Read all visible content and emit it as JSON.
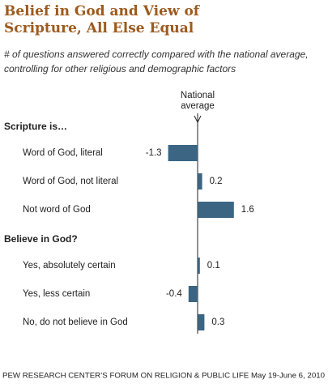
{
  "chart_data": {
    "type": "bar",
    "title": "Belief in God and View of Scripture, All Else Equal",
    "subtitle": "# of questions answered correctly compared with the national average, controlling for other religious and demographic factors",
    "reference_label": "National average",
    "color": "#3b6583",
    "groups": [
      {
        "name": "Scripture is…",
        "categories": [
          "Word of God, literal",
          "Word of God, not literal",
          "Not word of God"
        ],
        "values": [
          -1.3,
          0.2,
          1.6
        ]
      },
      {
        "name": "Believe in God?",
        "categories": [
          "Yes, absolutely certain",
          "Yes, less certain",
          "No, do not believe in God"
        ],
        "values": [
          0.1,
          -0.4,
          0.3
        ]
      }
    ],
    "source": "PEW RESEARCH CENTER’S FORUM ON RELIGION & PUBLIC LIFE May 19-June 6, 2010"
  }
}
